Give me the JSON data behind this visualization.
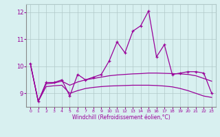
{
  "xlabel": "Windchill (Refroidissement éolien,°C)",
  "x": [
    0,
    1,
    2,
    3,
    4,
    5,
    6,
    7,
    8,
    9,
    10,
    11,
    12,
    13,
    14,
    15,
    16,
    17,
    18,
    19,
    20,
    21,
    22,
    23
  ],
  "y_windchill": [
    10.1,
    8.7,
    9.4,
    9.4,
    9.5,
    8.9,
    9.7,
    9.5,
    9.6,
    9.7,
    10.2,
    10.9,
    10.5,
    11.3,
    11.5,
    12.05,
    10.35,
    10.8,
    9.7,
    9.75,
    9.8,
    9.8,
    9.75,
    9.0
  ],
  "y_smooth1": [
    10.1,
    8.7,
    9.35,
    9.38,
    9.45,
    9.3,
    9.42,
    9.5,
    9.55,
    9.6,
    9.65,
    9.68,
    9.7,
    9.72,
    9.73,
    9.75,
    9.75,
    9.74,
    9.73,
    9.72,
    9.7,
    9.65,
    9.55,
    9.45
  ],
  "y_smooth2": [
    10.1,
    8.7,
    9.25,
    9.28,
    9.3,
    9.0,
    9.1,
    9.18,
    9.22,
    9.25,
    9.27,
    9.28,
    9.29,
    9.3,
    9.3,
    9.3,
    9.29,
    9.27,
    9.24,
    9.18,
    9.1,
    9.0,
    8.9,
    8.85
  ],
  "line_color": "#990099",
  "bg_color": "#d8f0f0",
  "grid_color": "#b0c8c8",
  "ylim": [
    8.5,
    12.3
  ],
  "yticks": [
    9,
    10,
    11,
    12
  ]
}
